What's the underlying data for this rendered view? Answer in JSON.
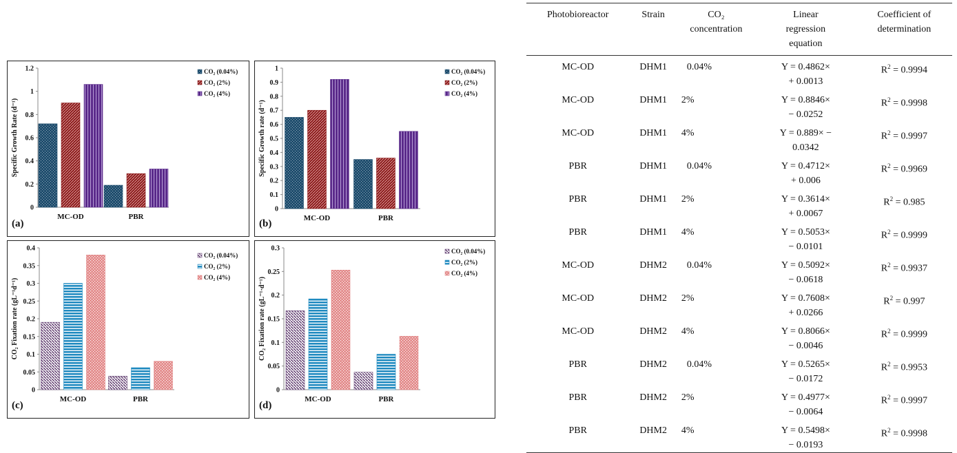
{
  "chart_data": [
    {
      "id": "a",
      "type": "bar",
      "panel_label": "(a)",
      "ylabel": "Specific Growth Rate (d⁻¹)",
      "ylim": [
        0,
        1.2
      ],
      "yticks": [
        "0",
        "0.2",
        "0.4",
        "0.6",
        "0.8",
        "1",
        "1.2"
      ],
      "categories": [
        "MC-OD",
        "PBR"
      ],
      "series": [
        {
          "name": "CO₂ (0.04%)",
          "color": "#1f4e6e",
          "pattern": "dots",
          "values": [
            0.72,
            0.19
          ]
        },
        {
          "name": "CO₂ (2%)",
          "color": "#8b1a1a",
          "pattern": "diag",
          "values": [
            0.9,
            0.29
          ]
        },
        {
          "name": "CO₂ (4%)",
          "color": "#5a2a8a",
          "pattern": "vert",
          "values": [
            1.06,
            0.33
          ]
        }
      ]
    },
    {
      "id": "b",
      "type": "bar",
      "panel_label": "(b)",
      "ylabel": "Specific Growth rate (d⁻¹)",
      "ylim": [
        0,
        1
      ],
      "yticks": [
        "0",
        "0.1",
        "0.2",
        "0.3",
        "0.4",
        "0.5",
        "0.6",
        "0.7",
        "0.8",
        "0.9",
        "1"
      ],
      "categories": [
        "MC-OD",
        "PBR"
      ],
      "series": [
        {
          "name": "CO₂ (0.04%)",
          "color": "#1f4e6e",
          "pattern": "dots",
          "values": [
            0.65,
            0.35
          ]
        },
        {
          "name": "CO₂ (2%)",
          "color": "#8b1a1a",
          "pattern": "diag",
          "values": [
            0.7,
            0.36
          ]
        },
        {
          "name": "CO₂ (4%)",
          "color": "#5a2a8a",
          "pattern": "vert",
          "values": [
            0.92,
            0.55
          ]
        }
      ]
    },
    {
      "id": "c",
      "type": "bar",
      "panel_label": "(c)",
      "ylabel": "CO₂ Fixation rate (gL⁻¹d⁻¹)",
      "ylim": [
        0,
        0.4
      ],
      "yticks": [
        "0",
        "0.05",
        "0.1",
        "0.15",
        "0.2",
        "0.25",
        "0.3",
        "0.35",
        "0.4"
      ],
      "categories": [
        "MC-OD",
        "PBR"
      ],
      "series": [
        {
          "name": "CO₂ (0.04%)",
          "color": "#6b4a7a",
          "pattern": "diag2",
          "values": [
            0.19,
            0.038
          ]
        },
        {
          "name": "CO₂ (2%)",
          "color": "#1f8ac0",
          "pattern": "horiz",
          "values": [
            0.3,
            0.062
          ]
        },
        {
          "name": "CO₂ (4%)",
          "color": "#e38a8a",
          "pattern": "dots2",
          "values": [
            0.38,
            0.08
          ]
        }
      ]
    },
    {
      "id": "d",
      "type": "bar",
      "panel_label": "(d)",
      "ylabel": "CO₂ Fixation rate (gL⁻¹·d⁻¹)",
      "ylim": [
        0,
        0.3
      ],
      "yticks": [
        "0",
        "0.05",
        "0.1",
        "0.15",
        "0.2",
        "0.25",
        "0.3"
      ],
      "categories": [
        "MC-OD",
        "PBR"
      ],
      "series": [
        {
          "name": "CO₂ (0.04%)",
          "color": "#6b4a7a",
          "pattern": "diag2",
          "values": [
            0.167,
            0.037
          ]
        },
        {
          "name": "CO₂ (2%)",
          "color": "#1f8ac0",
          "pattern": "horiz",
          "values": [
            0.192,
            0.075
          ]
        },
        {
          "name": "CO₂ (4%)",
          "color": "#e38a8a",
          "pattern": "dots2",
          "values": [
            0.253,
            0.113
          ]
        }
      ]
    }
  ],
  "table": {
    "headers": [
      {
        "lines": [
          "Photobioreactor"
        ]
      },
      {
        "lines": [
          "Strain"
        ]
      },
      {
        "lines": [
          "CO₂",
          "concentration"
        ]
      },
      {
        "lines": [
          "Linear",
          "regression",
          "equation"
        ]
      },
      {
        "lines": [
          "Coefficient of",
          "determination"
        ]
      }
    ],
    "rows": [
      {
        "reactor": "MC-OD",
        "strain": "DHM1",
        "co2": "0.04%",
        "eq1": "Y = 0.4862×",
        "eq2": "+ 0.0013",
        "r2": "= 0.9994"
      },
      {
        "reactor": "MC-OD",
        "strain": "DHM1",
        "co2": "2%",
        "eq1": "Y = 0.8846×",
        "eq2": "− 0.0252",
        "r2": "= 0.9998"
      },
      {
        "reactor": "MC-OD",
        "strain": "DHM1",
        "co2": "4%",
        "eq1": "Y = 0.889× −",
        "eq2": "0.0342",
        "r2": "= 0.9997"
      },
      {
        "reactor": "PBR",
        "strain": "DHM1",
        "co2": "0.04%",
        "eq1": "Y = 0.4712×",
        "eq2": "+ 0.006",
        "r2": "= 0.9969"
      },
      {
        "reactor": "PBR",
        "strain": "DHM1",
        "co2": "2%",
        "eq1": "Y = 0.3614×",
        "eq2": "+ 0.0067",
        "r2": "= 0.985"
      },
      {
        "reactor": "PBR",
        "strain": "DHM1",
        "co2": "4%",
        "eq1": "Y = 0.5053×",
        "eq2": "− 0.0101",
        "r2": "= 0.9999"
      },
      {
        "reactor": "MC-OD",
        "strain": "DHM2",
        "co2": "0.04%",
        "eq1": "Y = 0.5092×",
        "eq2": "− 0.0618",
        "r2": "= 0.9937"
      },
      {
        "reactor": "MC-OD",
        "strain": "DHM2",
        "co2": "2%",
        "eq1": "Y = 0.7608×",
        "eq2": "+ 0.0266",
        "r2": "= 0.997"
      },
      {
        "reactor": "MC-OD",
        "strain": "DHM2",
        "co2": "4%",
        "eq1": "Y = 0.8066×",
        "eq2": "− 0.0046",
        "r2": "= 0.9999"
      },
      {
        "reactor": "PBR",
        "strain": "DHM2",
        "co2": "0.04%",
        "eq1": "Y = 0.5265×",
        "eq2": "− 0.0172",
        "r2": "= 0.9953"
      },
      {
        "reactor": "PBR",
        "strain": "DHM2",
        "co2": "2%",
        "eq1": "Y = 0.4977×",
        "eq2": "− 0.0064",
        "r2": "= 0.9997"
      },
      {
        "reactor": "PBR",
        "strain": "DHM2",
        "co2": "4%",
        "eq1": "Y = 0.5498×",
        "eq2": "− 0.0193",
        "r2": "= 0.9998"
      }
    ]
  }
}
